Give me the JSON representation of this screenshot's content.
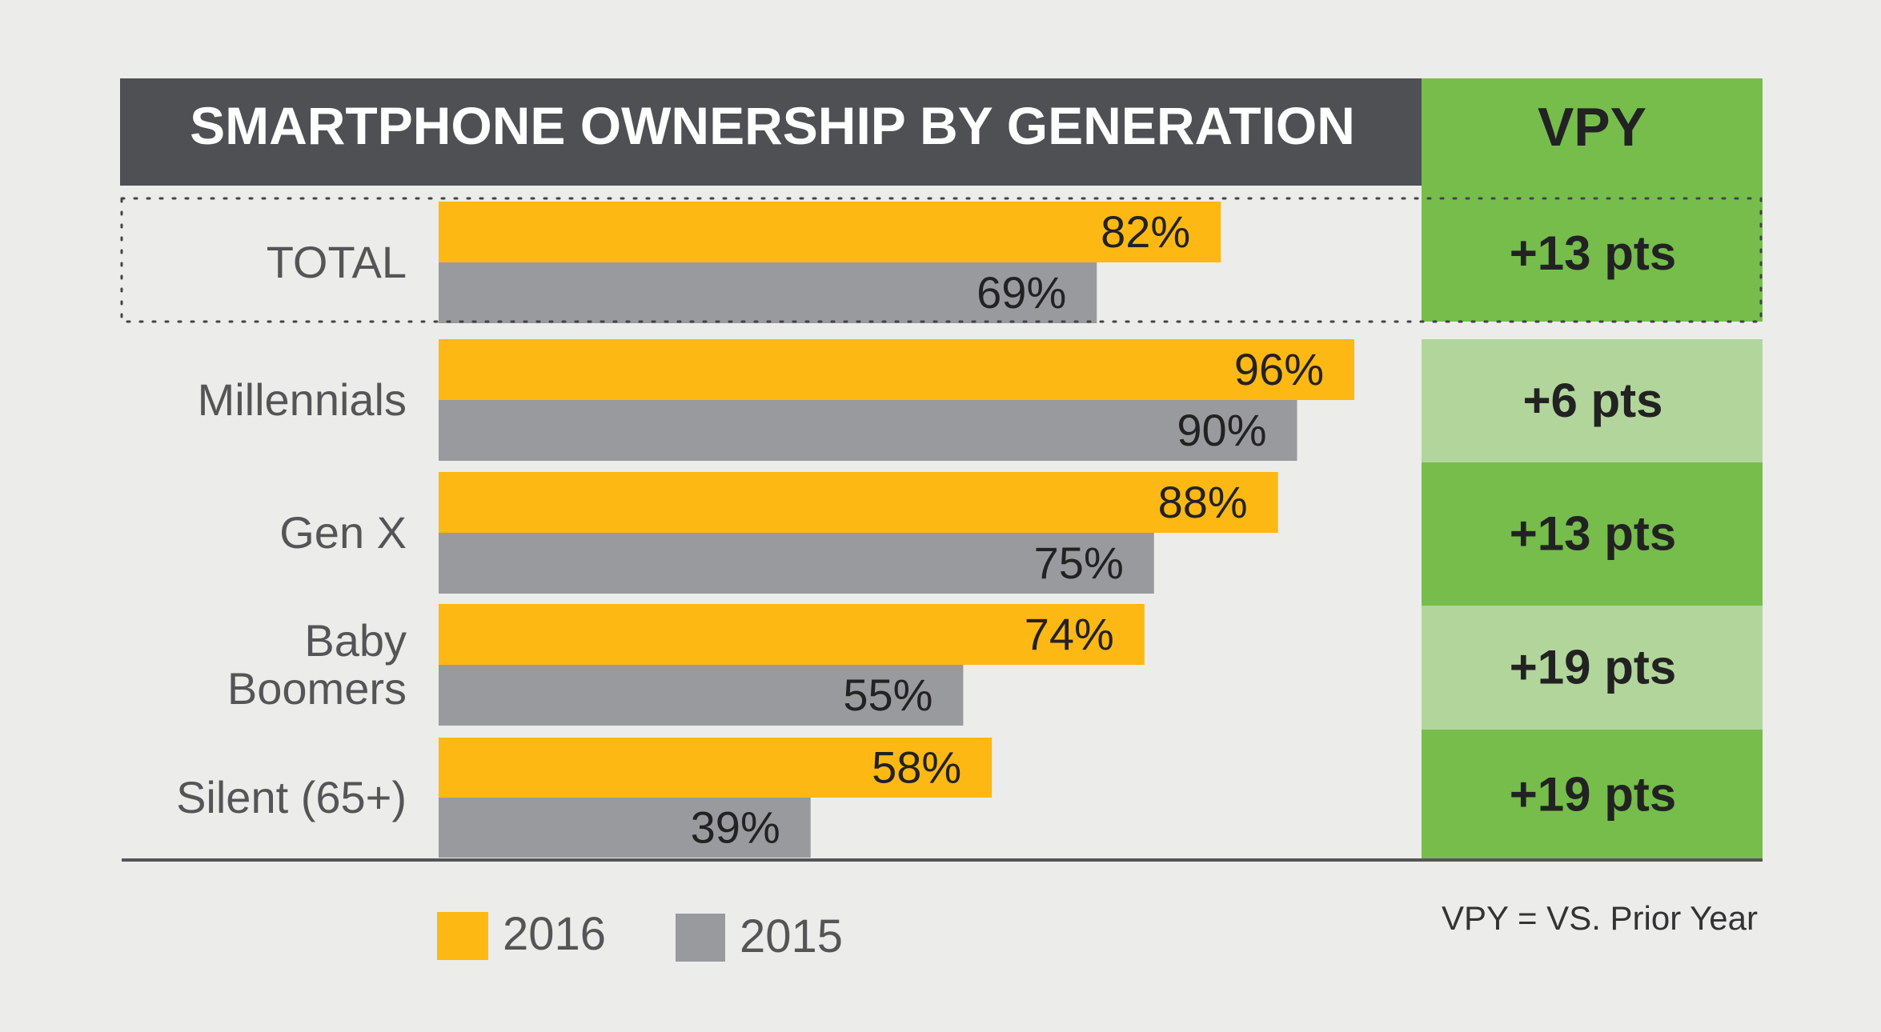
{
  "chart_data": {
    "type": "bar",
    "orientation": "horizontal",
    "title": "SMARTPHONE OWNERSHIP BY GENERATION",
    "vpy_header": "VPY",
    "footnote": "VPY = VS. Prior Year",
    "categories": [
      "TOTAL",
      "Millennials",
      "Gen X",
      "Baby Boomers",
      "Silent (65+)"
    ],
    "category_lines": [
      [
        "TOTAL"
      ],
      [
        "Millennials"
      ],
      [
        "Gen X"
      ],
      [
        "Baby",
        "Boomers"
      ],
      [
        "Silent (65+)"
      ]
    ],
    "series": [
      {
        "name": "2016",
        "values": [
          82,
          96,
          88,
          74,
          58
        ],
        "labels": [
          "82%",
          "96%",
          "88%",
          "74%",
          "58%"
        ],
        "color": "#fdb813"
      },
      {
        "name": "2015",
        "values": [
          69,
          90,
          75,
          55,
          39
        ],
        "labels": [
          "69%",
          "90%",
          "75%",
          "55%",
          "39%"
        ],
        "color": "#999a9e"
      }
    ],
    "vpy": [
      "+13 pts",
      "+6 pts",
      "+13 pts",
      "+19 pts",
      "+19 pts"
    ],
    "vpy_colors": [
      "#76bd4c",
      "#b2d59b",
      "#76bd4c",
      "#b2d59b",
      "#76bd4c"
    ],
    "highlighted_category": "TOTAL",
    "xlim": [
      0,
      100
    ],
    "legend_position": "bottom-left",
    "grid": false,
    "colors": {
      "title_bar": "#4f5054",
      "title_text": "#ffffff",
      "vpy_header_bg": "#76bd4c",
      "text_dark": "#222222",
      "text_label": "#555558",
      "baseline": "#555558"
    }
  }
}
